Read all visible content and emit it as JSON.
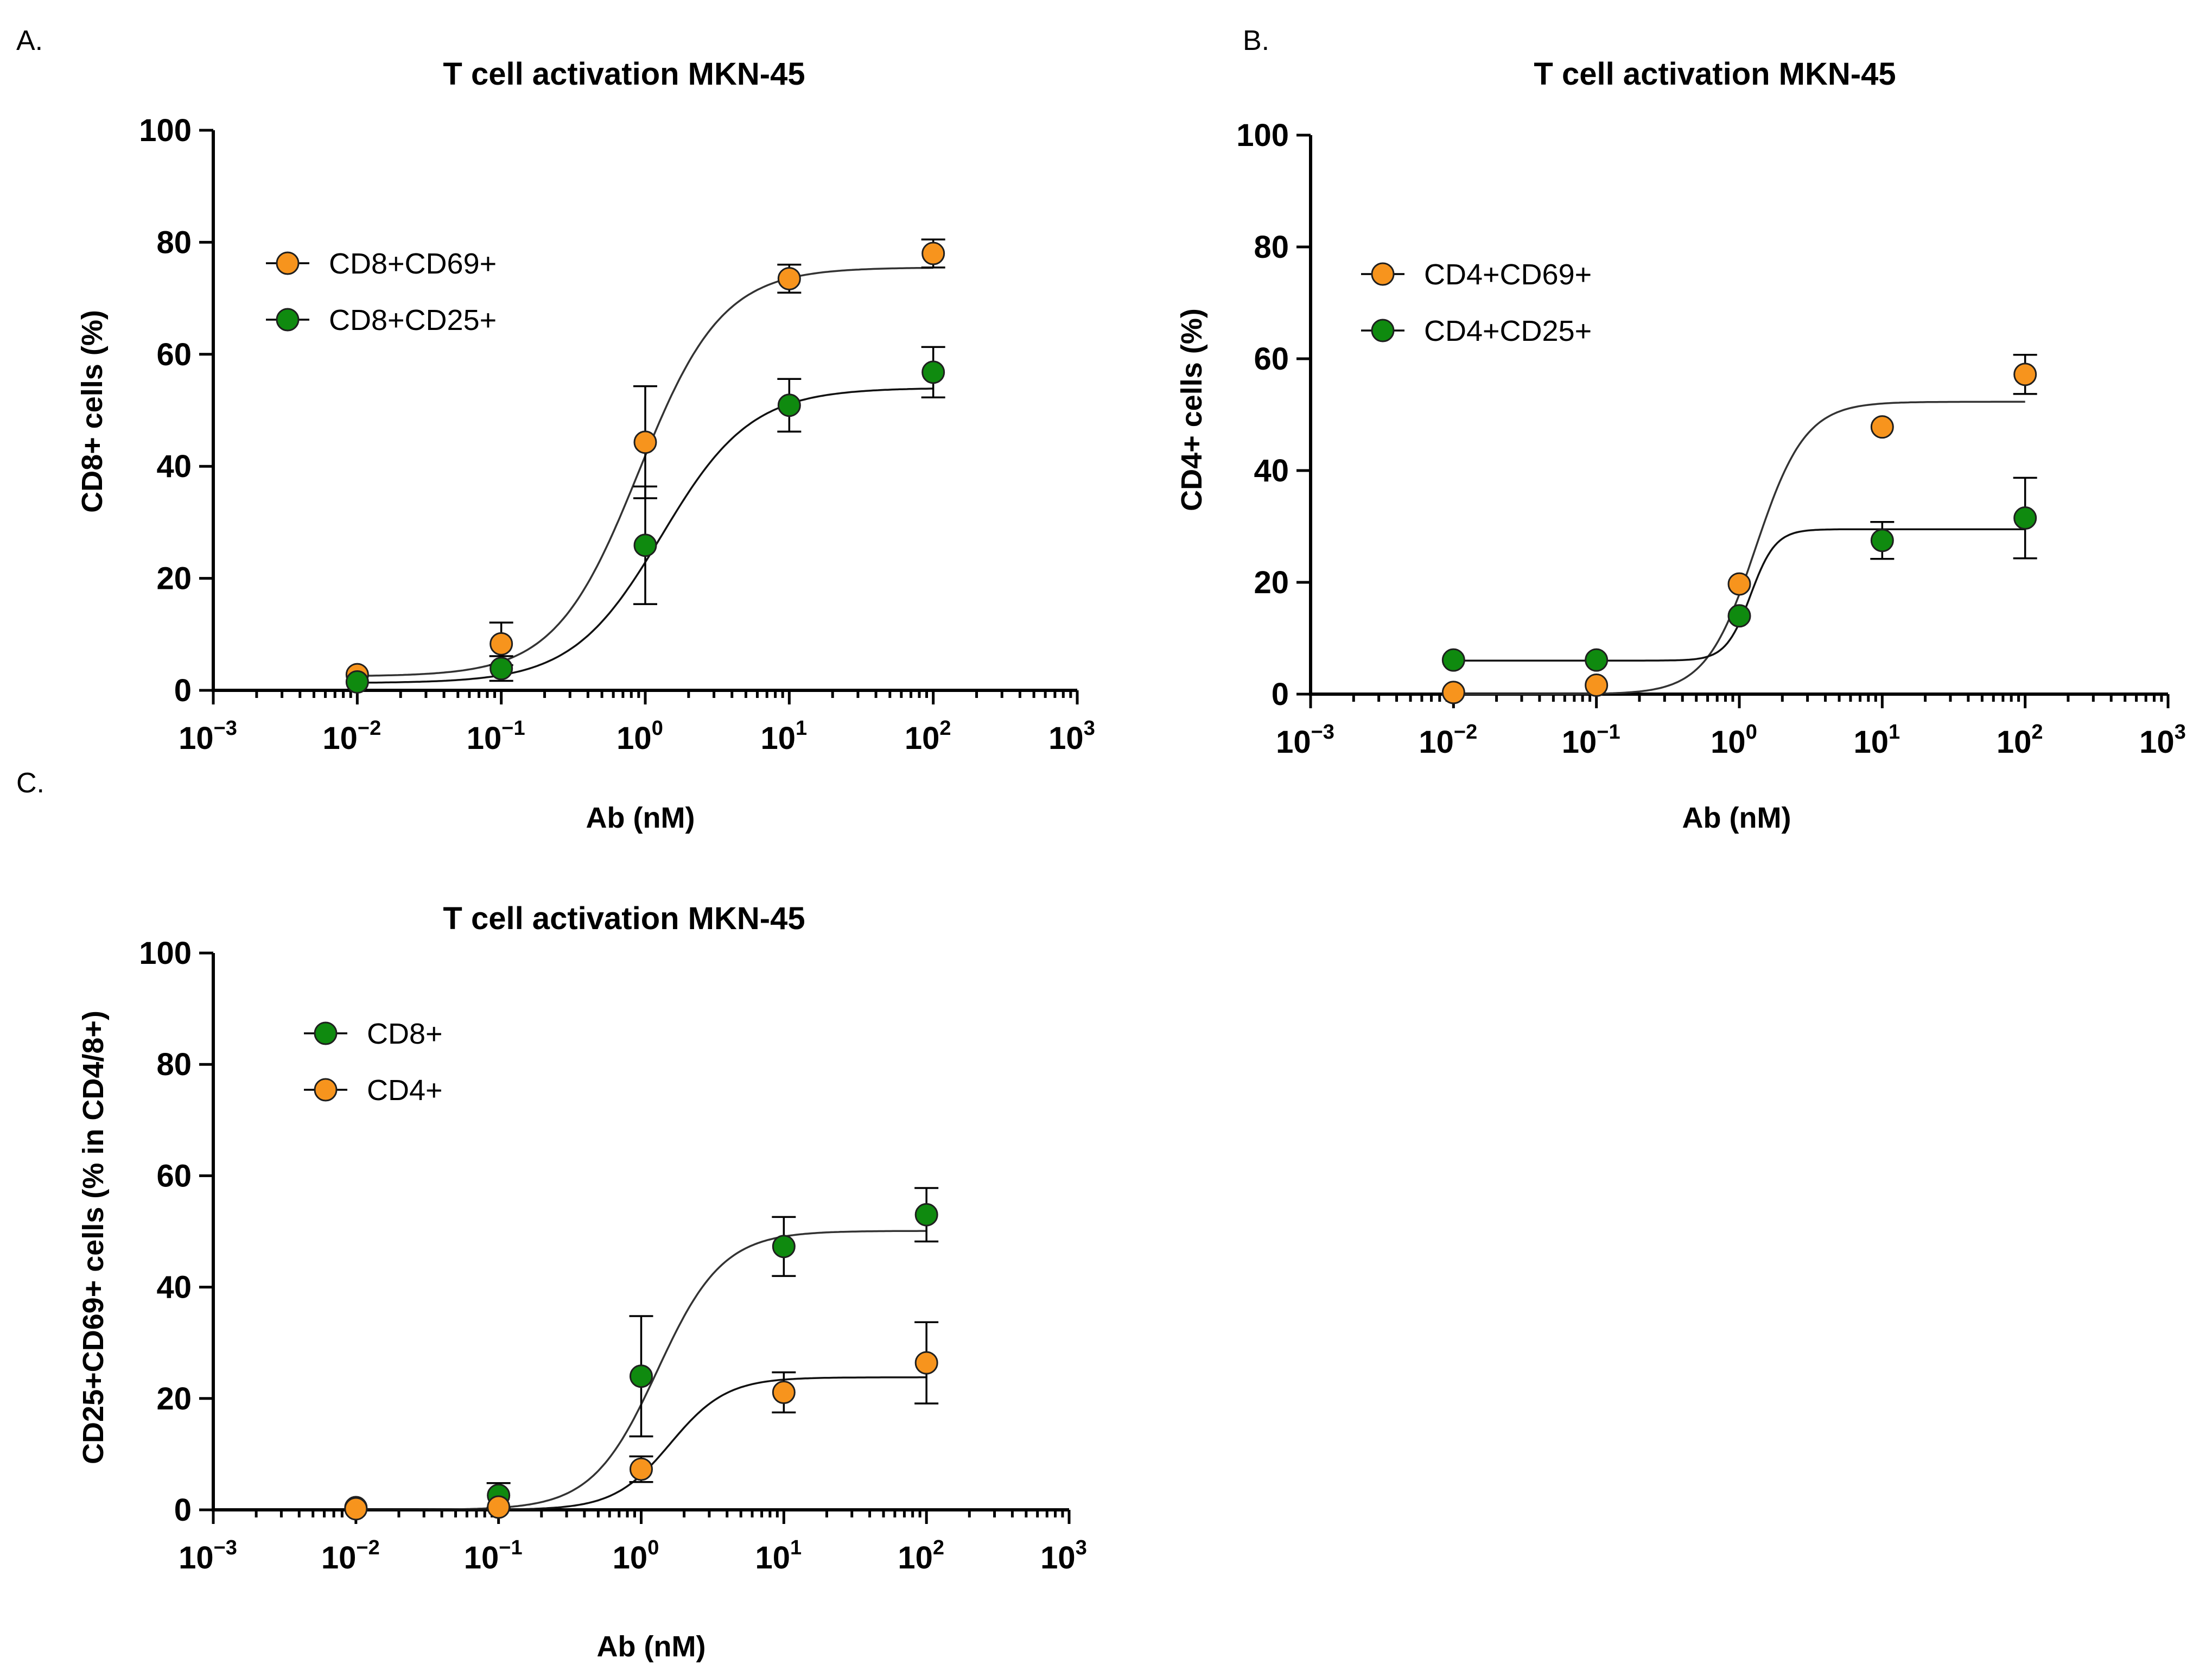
{
  "panels": [
    {
      "id": "A",
      "panel_label": "A.",
      "chart_data": {
        "type": "scatter",
        "title": "T cell activation MKN-45",
        "xlabel": "Ab (nM)",
        "ylabel": "CD8+ cells (%)",
        "xscale": "log",
        "xlim": [
          0.001,
          1000
        ],
        "ylim": [
          0,
          100
        ],
        "xticks": [
          {
            "base": "10",
            "exp": "−3"
          },
          {
            "base": "10",
            "exp": "−2"
          },
          {
            "base": "10",
            "exp": "−1"
          },
          {
            "base": "10",
            "exp": "0"
          },
          {
            "base": "10",
            "exp": "1"
          },
          {
            "base": "10",
            "exp": "2"
          },
          {
            "base": "10",
            "exp": "3"
          }
        ],
        "yticks": [
          "0",
          "20",
          "40",
          "60",
          "80",
          "100"
        ],
        "legend_position": "top-left",
        "x": [
          0.01,
          0.1,
          1,
          10,
          100
        ],
        "series": [
          {
            "name": "CD8+CD69+",
            "color": "#F7941D",
            "values": [
              2.8,
              8.3,
              44.3,
              73.5,
              78.0
            ],
            "errors": [
              0,
              3.8,
              10.0,
              2.5,
              2.5
            ],
            "fit": {
              "bottom": 2.5,
              "top": 75.5,
              "ec50": 0.9,
              "hill": 1.5
            }
          },
          {
            "name": "CD8+CD25+",
            "color": "#0F8A0F",
            "values": [
              1.5,
              3.9,
              25.9,
              50.9,
              56.8
            ],
            "errors": [
              0,
              2.2,
              10.5,
              4.7,
              4.5
            ],
            "fit": {
              "bottom": 1.3,
              "top": 54.0,
              "ec50": 1.3,
              "hill": 1.4
            }
          }
        ]
      }
    },
    {
      "id": "B",
      "panel_label": "B.",
      "chart_data": {
        "type": "scatter",
        "title": "T cell activation MKN-45",
        "xlabel": "Ab (nM)",
        "ylabel": "CD4+ cells (%)",
        "xscale": "log",
        "xlim": [
          0.001,
          1000
        ],
        "ylim": [
          0,
          100
        ],
        "xticks": [
          {
            "base": "10",
            "exp": "−3"
          },
          {
            "base": "10",
            "exp": "−2"
          },
          {
            "base": "10",
            "exp": "−1"
          },
          {
            "base": "10",
            "exp": "0"
          },
          {
            "base": "10",
            "exp": "1"
          },
          {
            "base": "10",
            "exp": "2"
          },
          {
            "base": "10",
            "exp": "3"
          }
        ],
        "yticks": [
          "0",
          "20",
          "40",
          "60",
          "80",
          "100"
        ],
        "legend_position": "top-left",
        "x": [
          0.01,
          0.1,
          1,
          10,
          100
        ],
        "series": [
          {
            "name": "CD4+CD69+",
            "color": "#F7941D",
            "values": [
              0.3,
              1.6,
              19.7,
              47.8,
              57.2
            ],
            "errors": [
              0,
              0,
              0,
              0,
              3.5
            ],
            "fit": {
              "bottom": 0,
              "top": 52.3,
              "ec50": 1.3,
              "hill": 2.5
            }
          },
          {
            "name": "CD4+CD25+",
            "color": "#0F8A0F",
            "values": [
              6.1,
              6.1,
              14.0,
              27.5,
              31.5
            ],
            "errors": [
              0,
              0,
              0,
              3.3,
              7.2
            ],
            "fit": {
              "bottom": 6.0,
              "top": 29.5,
              "ec50": 1.2,
              "hill": 5.0
            }
          }
        ]
      }
    },
    {
      "id": "C",
      "panel_label": "C.",
      "chart_data": {
        "type": "scatter",
        "title": "T cell activation MKN-45",
        "xlabel": "Ab (nM)",
        "ylabel": "CD25+CD69+ cells (% in CD4/8+)",
        "xscale": "log",
        "xlim": [
          0.001,
          1000
        ],
        "ylim": [
          0,
          100
        ],
        "xticks": [
          {
            "base": "10",
            "exp": "−3"
          },
          {
            "base": "10",
            "exp": "−2"
          },
          {
            "base": "10",
            "exp": "−1"
          },
          {
            "base": "10",
            "exp": "0"
          },
          {
            "base": "10",
            "exp": "1"
          },
          {
            "base": "10",
            "exp": "2"
          },
          {
            "base": "10",
            "exp": "3"
          }
        ],
        "yticks": [
          "0",
          "20",
          "40",
          "60",
          "80",
          "100"
        ],
        "legend_position": "top-left",
        "x": [
          0.01,
          0.1,
          1,
          10,
          100
        ],
        "series": [
          {
            "name": "CD8+",
            "color": "#0F8A0F",
            "values": [
              0.4,
              2.6,
              24.0,
              47.3,
              53.0
            ],
            "errors": [
              0,
              2.2,
              10.8,
              5.3,
              4.8
            ],
            "fit": {
              "bottom": 0,
              "top": 50.1,
              "ec50": 1.3,
              "hill": 1.9
            }
          },
          {
            "name": "CD4+",
            "color": "#F7941D",
            "values": [
              0.2,
              0.5,
              7.3,
              21.1,
              26.4
            ],
            "errors": [
              0,
              0,
              2.3,
              3.6,
              7.3
            ],
            "fit": {
              "bottom": 0,
              "top": 23.8,
              "ec50": 1.6,
              "hill": 2.2
            }
          }
        ]
      }
    }
  ]
}
